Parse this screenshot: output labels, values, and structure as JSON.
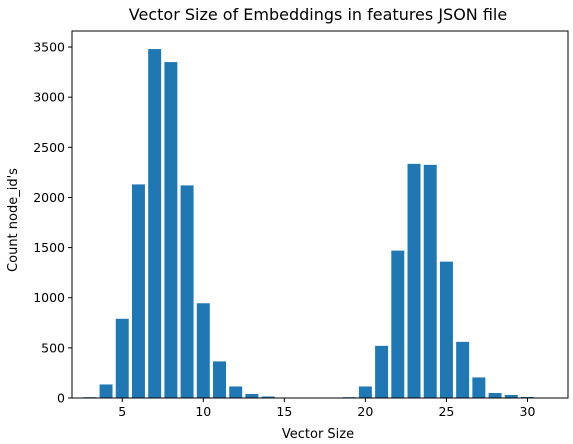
{
  "chart_data": {
    "type": "bar",
    "title": "Vector Size of Embeddings in features JSON file",
    "xlabel": "Vector Size",
    "ylabel": "Count node_id's",
    "xlim": [
      1.9,
      32.5
    ],
    "ylim": [
      0,
      3660
    ],
    "x_ticks": [
      5,
      10,
      15,
      20,
      25,
      30
    ],
    "y_ticks": [
      0,
      500,
      1000,
      1500,
      2000,
      2500,
      3000,
      3500
    ],
    "bar_color": "#1f77b4",
    "grid": false,
    "legend": "none",
    "x": [
      3,
      4,
      5,
      6,
      7,
      8,
      9,
      10,
      11,
      12,
      13,
      14,
      15,
      16,
      17,
      18,
      19,
      20,
      21,
      22,
      23,
      24,
      25,
      26,
      27,
      28,
      29,
      30,
      31
    ],
    "values": [
      8,
      135,
      790,
      2130,
      3480,
      3350,
      2120,
      945,
      365,
      115,
      40,
      15,
      3,
      0,
      0,
      0,
      8,
      115,
      520,
      1470,
      2335,
      2325,
      1360,
      560,
      205,
      50,
      30,
      10,
      0
    ]
  }
}
